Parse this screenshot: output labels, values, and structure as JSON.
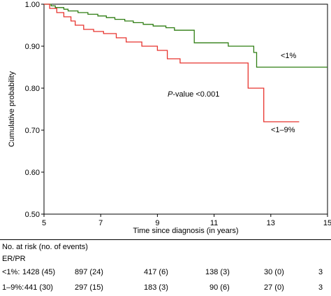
{
  "chart_data": {
    "type": "line",
    "step": true,
    "xlabel": "Time since diagnosis (in years)",
    "ylabel": "Cumulative probability",
    "xlim": [
      5,
      15
    ],
    "ylim": [
      0.5,
      1.0
    ],
    "xticks": [
      "5",
      "7",
      "9",
      "11",
      "13",
      "15"
    ],
    "yticks": [
      "0.50",
      "0.60",
      "0.70",
      "0.80",
      "0.90",
      "1.00"
    ],
    "annotation_prefix": "P",
    "annotation_rest": "-value <0.001",
    "series": [
      {
        "name": "<1%",
        "color": "#2e7d12",
        "points": [
          [
            5.0,
            1.0
          ],
          [
            5.25,
            0.996
          ],
          [
            5.4,
            0.992
          ],
          [
            5.7,
            0.988
          ],
          [
            5.85,
            0.984
          ],
          [
            6.2,
            0.98
          ],
          [
            6.55,
            0.976
          ],
          [
            6.9,
            0.972
          ],
          [
            7.2,
            0.968
          ],
          [
            7.5,
            0.964
          ],
          [
            7.85,
            0.96
          ],
          [
            8.15,
            0.956
          ],
          [
            8.5,
            0.952
          ],
          [
            8.85,
            0.948
          ],
          [
            9.3,
            0.944
          ],
          [
            9.6,
            0.938
          ],
          [
            10.3,
            0.908
          ],
          [
            11.5,
            0.9
          ],
          [
            12.4,
            0.885
          ],
          [
            12.5,
            0.85
          ],
          [
            15.0,
            0.85
          ]
        ]
      },
      {
        "name": "<1–9%",
        "color": "#e8332d",
        "points": [
          [
            5.0,
            1.0
          ],
          [
            5.2,
            0.99
          ],
          [
            5.45,
            0.98
          ],
          [
            5.7,
            0.97
          ],
          [
            5.95,
            0.96
          ],
          [
            6.1,
            0.95
          ],
          [
            6.4,
            0.94
          ],
          [
            6.75,
            0.935
          ],
          [
            7.1,
            0.93
          ],
          [
            7.55,
            0.92
          ],
          [
            7.9,
            0.91
          ],
          [
            8.45,
            0.9
          ],
          [
            9.0,
            0.89
          ],
          [
            9.35,
            0.87
          ],
          [
            9.8,
            0.86
          ],
          [
            12.2,
            0.8
          ],
          [
            12.75,
            0.72
          ],
          [
            14.0,
            0.72
          ]
        ]
      }
    ]
  },
  "risk_table": {
    "title": "No. at risk (no. of events)",
    "subtitle": "ER/PR",
    "rows": [
      {
        "label": "<1%:",
        "values": [
          "1428 (45)",
          "897 (24)",
          "417 (6)",
          "138 (3)",
          "30 (0)",
          "3"
        ]
      },
      {
        "label": "1–9%:",
        "values": [
          "441 (30)",
          "297 (15)",
          "183 (3)",
          "90 (6)",
          "27 (0)",
          "3"
        ]
      }
    ]
  }
}
